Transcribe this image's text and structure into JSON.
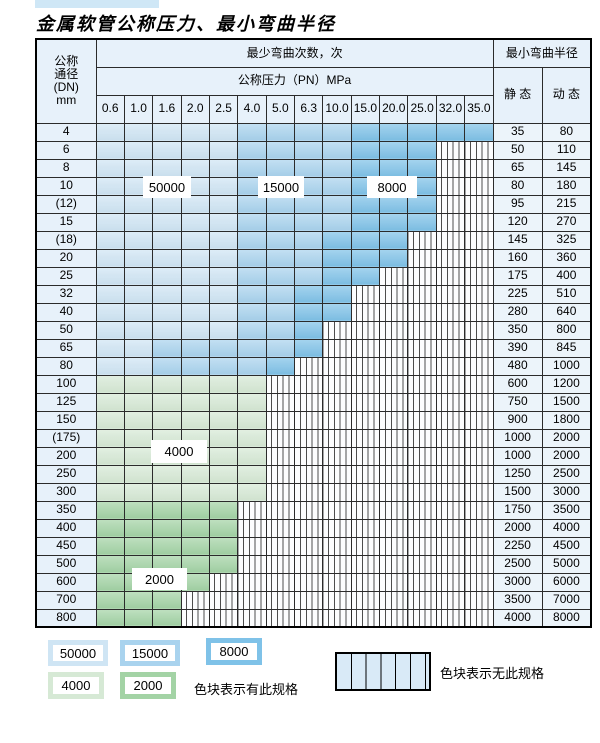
{
  "title": "金属软管公称压力、最小弯曲半径",
  "colors": {
    "cycles_50000": "#cfe5f4",
    "cycles_15000": "#a9d3ee",
    "cycles_8000": "#7fc2e8",
    "cycles_4000": "#d6e9d5",
    "cycles_2000": "#a3d3a5",
    "header_bg": "#e7f1fa",
    "value_bg": "#ecf4fa",
    "nospec_fill": "#d9eaf7"
  },
  "chart_data": {
    "type": "table",
    "title": "金属软管公称压力、最小弯曲半径",
    "header": {
      "dn_lines": [
        "公称",
        "通径",
        "(DN)",
        "mm"
      ],
      "bend_cycles": "最少弯曲次数，次",
      "pressure": "公称压力（PN）MPa",
      "min_radius": "最小弯曲半径",
      "static": "静 态",
      "dynamic": "动 态",
      "pressure_ticks": [
        "0.6",
        "1.0",
        "1.6",
        "2.0",
        "2.5",
        "4.0",
        "5.0",
        "6.3",
        "10.0",
        "15.0",
        "20.0",
        "25.0",
        "32.0",
        "35.0"
      ]
    },
    "cell_legend": "cells array gives bend-cycle region per pressure column; none = 无此规格",
    "rows": [
      {
        "dn": "4",
        "static": "35",
        "dynamic": "80",
        "cells": [
          "50000",
          "50000",
          "50000",
          "50000",
          "50000",
          "15000",
          "15000",
          "15000",
          "15000",
          "8000",
          "8000",
          "8000",
          "8000",
          "8000"
        ]
      },
      {
        "dn": "6",
        "static": "50",
        "dynamic": "110",
        "cells": [
          "50000",
          "50000",
          "50000",
          "50000",
          "50000",
          "15000",
          "15000",
          "15000",
          "15000",
          "8000",
          "8000",
          "8000",
          "none",
          "none"
        ]
      },
      {
        "dn": "8",
        "static": "65",
        "dynamic": "145",
        "cells": [
          "50000",
          "50000",
          "50000",
          "50000",
          "50000",
          "15000",
          "15000",
          "15000",
          "15000",
          "8000",
          "8000",
          "8000",
          "none",
          "none"
        ]
      },
      {
        "dn": "10",
        "static": "80",
        "dynamic": "180",
        "cells": [
          "50000",
          "50000",
          "50000",
          "50000",
          "50000",
          "15000",
          "15000",
          "15000",
          "15000",
          "8000",
          "8000",
          "8000",
          "none",
          "none"
        ]
      },
      {
        "dn": "(12)",
        "static": "95",
        "dynamic": "215",
        "cells": [
          "50000",
          "50000",
          "50000",
          "50000",
          "50000",
          "15000",
          "15000",
          "15000",
          "15000",
          "8000",
          "8000",
          "8000",
          "none",
          "none"
        ]
      },
      {
        "dn": "15",
        "static": "120",
        "dynamic": "270",
        "cells": [
          "50000",
          "50000",
          "50000",
          "50000",
          "50000",
          "15000",
          "15000",
          "15000",
          "15000",
          "8000",
          "8000",
          "8000",
          "none",
          "none"
        ]
      },
      {
        "dn": "(18)",
        "static": "145",
        "dynamic": "325",
        "cells": [
          "50000",
          "50000",
          "50000",
          "50000",
          "50000",
          "15000",
          "15000",
          "15000",
          "8000",
          "8000",
          "8000",
          "none",
          "none",
          "none"
        ]
      },
      {
        "dn": "20",
        "static": "160",
        "dynamic": "360",
        "cells": [
          "50000",
          "50000",
          "50000",
          "50000",
          "50000",
          "15000",
          "15000",
          "15000",
          "8000",
          "8000",
          "8000",
          "none",
          "none",
          "none"
        ]
      },
      {
        "dn": "25",
        "static": "175",
        "dynamic": "400",
        "cells": [
          "50000",
          "50000",
          "50000",
          "50000",
          "50000",
          "15000",
          "15000",
          "15000",
          "8000",
          "8000",
          "none",
          "none",
          "none",
          "none"
        ]
      },
      {
        "dn": "32",
        "static": "225",
        "dynamic": "510",
        "cells": [
          "50000",
          "50000",
          "50000",
          "50000",
          "50000",
          "15000",
          "15000",
          "8000",
          "8000",
          "none",
          "none",
          "none",
          "none",
          "none"
        ]
      },
      {
        "dn": "40",
        "static": "280",
        "dynamic": "640",
        "cells": [
          "50000",
          "50000",
          "50000",
          "50000",
          "50000",
          "15000",
          "15000",
          "8000",
          "8000",
          "none",
          "none",
          "none",
          "none",
          "none"
        ]
      },
      {
        "dn": "50",
        "static": "350",
        "dynamic": "800",
        "cells": [
          "50000",
          "50000",
          "50000",
          "50000",
          "50000",
          "15000",
          "15000",
          "8000",
          "none",
          "none",
          "none",
          "none",
          "none",
          "none"
        ]
      },
      {
        "dn": "65",
        "static": "390",
        "dynamic": "845",
        "cells": [
          "50000",
          "50000",
          "15000",
          "15000",
          "15000",
          "15000",
          "15000",
          "8000",
          "none",
          "none",
          "none",
          "none",
          "none",
          "none"
        ]
      },
      {
        "dn": "80",
        "static": "480",
        "dynamic": "1000",
        "cells": [
          "50000",
          "50000",
          "15000",
          "15000",
          "15000",
          "15000",
          "8000",
          "none",
          "none",
          "none",
          "none",
          "none",
          "none",
          "none"
        ]
      },
      {
        "dn": "100",
        "static": "600",
        "dynamic": "1200",
        "cells": [
          "4000",
          "4000",
          "4000",
          "4000",
          "4000",
          "4000",
          "none",
          "none",
          "none",
          "none",
          "none",
          "none",
          "none",
          "none"
        ]
      },
      {
        "dn": "125",
        "static": "750",
        "dynamic": "1500",
        "cells": [
          "4000",
          "4000",
          "4000",
          "4000",
          "4000",
          "4000",
          "none",
          "none",
          "none",
          "none",
          "none",
          "none",
          "none",
          "none"
        ]
      },
      {
        "dn": "150",
        "static": "900",
        "dynamic": "1800",
        "cells": [
          "4000",
          "4000",
          "4000",
          "4000",
          "4000",
          "4000",
          "none",
          "none",
          "none",
          "none",
          "none",
          "none",
          "none",
          "none"
        ]
      },
      {
        "dn": "(175)",
        "static": "1000",
        "dynamic": "2000",
        "cells": [
          "4000",
          "4000",
          "4000",
          "4000",
          "4000",
          "4000",
          "none",
          "none",
          "none",
          "none",
          "none",
          "none",
          "none",
          "none"
        ]
      },
      {
        "dn": "200",
        "static": "1000",
        "dynamic": "2000",
        "cells": [
          "4000",
          "4000",
          "4000",
          "4000",
          "4000",
          "4000",
          "none",
          "none",
          "none",
          "none",
          "none",
          "none",
          "none",
          "none"
        ]
      },
      {
        "dn": "250",
        "static": "1250",
        "dynamic": "2500",
        "cells": [
          "4000",
          "4000",
          "4000",
          "4000",
          "4000",
          "4000",
          "none",
          "none",
          "none",
          "none",
          "none",
          "none",
          "none",
          "none"
        ]
      },
      {
        "dn": "300",
        "static": "1500",
        "dynamic": "3000",
        "cells": [
          "4000",
          "4000",
          "4000",
          "4000",
          "4000",
          "4000",
          "none",
          "none",
          "none",
          "none",
          "none",
          "none",
          "none",
          "none"
        ]
      },
      {
        "dn": "350",
        "static": "1750",
        "dynamic": "3500",
        "cells": [
          "2000",
          "2000",
          "2000",
          "2000",
          "2000",
          "none",
          "none",
          "none",
          "none",
          "none",
          "none",
          "none",
          "none",
          "none"
        ]
      },
      {
        "dn": "400",
        "static": "2000",
        "dynamic": "4000",
        "cells": [
          "2000",
          "2000",
          "2000",
          "2000",
          "2000",
          "none",
          "none",
          "none",
          "none",
          "none",
          "none",
          "none",
          "none",
          "none"
        ]
      },
      {
        "dn": "450",
        "static": "2250",
        "dynamic": "4500",
        "cells": [
          "2000",
          "2000",
          "2000",
          "2000",
          "2000",
          "none",
          "none",
          "none",
          "none",
          "none",
          "none",
          "none",
          "none",
          "none"
        ]
      },
      {
        "dn": "500",
        "static": "2500",
        "dynamic": "5000",
        "cells": [
          "2000",
          "2000",
          "2000",
          "2000",
          "2000",
          "none",
          "none",
          "none",
          "none",
          "none",
          "none",
          "none",
          "none",
          "none"
        ]
      },
      {
        "dn": "600",
        "static": "3000",
        "dynamic": "6000",
        "cells": [
          "2000",
          "2000",
          "2000",
          "2000",
          "none",
          "none",
          "none",
          "none",
          "none",
          "none",
          "none",
          "none",
          "none",
          "none"
        ]
      },
      {
        "dn": "700",
        "static": "3500",
        "dynamic": "7000",
        "cells": [
          "2000",
          "2000",
          "2000",
          "none",
          "none",
          "none",
          "none",
          "none",
          "none",
          "none",
          "none",
          "none",
          "none",
          "none"
        ]
      },
      {
        "dn": "800",
        "static": "4000",
        "dynamic": "8000",
        "cells": [
          "2000",
          "2000",
          "2000",
          "none",
          "none",
          "none",
          "none",
          "none",
          "none",
          "none",
          "none",
          "none",
          "none",
          "none"
        ]
      }
    ]
  },
  "overlays": [
    {
      "text": "50000"
    },
    {
      "text": "15000"
    },
    {
      "text": "8000"
    },
    {
      "text": "4000"
    },
    {
      "text": "2000"
    }
  ],
  "legend": {
    "swatches": [
      {
        "value": "50000",
        "color": "#cfe5f4"
      },
      {
        "value": "15000",
        "color": "#a9d3ee"
      },
      {
        "value": "8000",
        "color": "#7fc2e8"
      },
      {
        "value": "4000",
        "color": "#d6e9d5"
      },
      {
        "value": "2000",
        "color": "#a3d3a5"
      }
    ],
    "has_spec_label": "色块表示有此规格",
    "no_spec_label": "色块表示无此规格"
  }
}
